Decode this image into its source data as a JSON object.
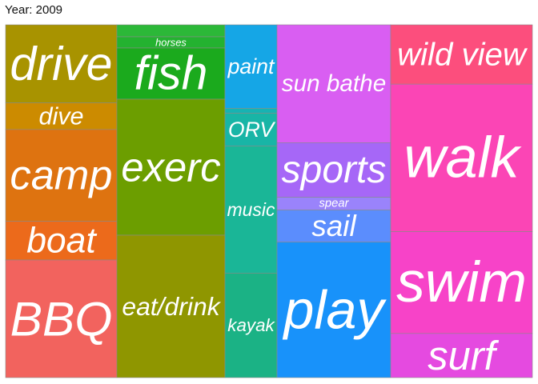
{
  "header": {
    "year_label": "Year: 2009"
  },
  "chart_data": {
    "type": "treemap",
    "title": "Year: 2009",
    "columns": [
      {
        "items": [
          {
            "label": "drive",
            "value": 97,
            "color": "#A89300"
          },
          {
            "label": "dive",
            "value": 33,
            "color": "#CC8B00"
          },
          {
            "label": "camp",
            "value": 114,
            "color": "#DE7310"
          },
          {
            "label": "boat",
            "value": 48,
            "color": "#EC6A1B"
          },
          {
            "label": "BBQ",
            "value": 146,
            "color": "#F2635E"
          }
        ]
      },
      {
        "items": [
          {
            "label": "",
            "value": 15,
            "color": "#2CB838"
          },
          {
            "label": "horses",
            "value": 14,
            "color": "#24B230"
          },
          {
            "label": "fish",
            "value": 64,
            "color": "#1BAA1D"
          },
          {
            "label": "exerc",
            "value": 170,
            "color": "#6C9E00"
          },
          {
            "label": "eat/drink",
            "value": 178,
            "color": "#8F9600"
          }
        ]
      },
      {
        "items": [
          {
            "label": "paint",
            "value": 104,
            "color": "#15A6E6"
          },
          {
            "label": "",
            "value": 6,
            "color": "#17B3B2"
          },
          {
            "label": "ORV",
            "value": 41,
            "color": "#18B5A6"
          },
          {
            "label": "music",
            "value": 158,
            "color": "#1AB697"
          },
          {
            "label": "kayak",
            "value": 130,
            "color": "#1BB285"
          }
        ]
      },
      {
        "items": [
          {
            "label": "sun bathe",
            "value": 147,
            "color": "#D95EF2"
          },
          {
            "label": "sports",
            "value": 68,
            "color": "#A667F7"
          },
          {
            "label": "spear",
            "value": 16,
            "color": "#9A83FB"
          },
          {
            "label": "sail",
            "value": 40,
            "color": "#5B8DFD"
          },
          {
            "label": "play",
            "value": 169,
            "color": "#1892FA"
          }
        ]
      },
      {
        "items": [
          {
            "label": "wild view",
            "value": 74,
            "color": "#FC4E7D"
          },
          {
            "label": "walk",
            "value": 184,
            "color": "#FB45B5"
          },
          {
            "label": "swim",
            "value": 127,
            "color": "#F743C8"
          },
          {
            "label": "surf",
            "value": 55,
            "color": "#E54AE0"
          }
        ]
      }
    ],
    "column_widths": [
      139,
      135,
      65,
      142,
      177
    ]
  }
}
